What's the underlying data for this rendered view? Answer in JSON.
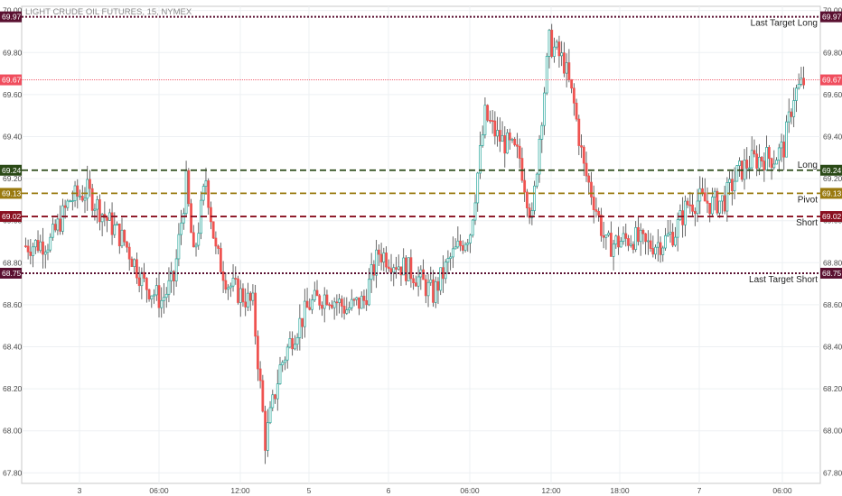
{
  "chart_data": {
    "type": "candlestick",
    "title": "LIGHT CRUDE OIL FUTURES, 15, NYMEX",
    "ylim": [
      67.75,
      70.02
    ],
    "y_ticks": [
      "67.80",
      "68.00",
      "68.20",
      "68.40",
      "68.60",
      "68.80",
      "69.00",
      "69.20",
      "69.40",
      "69.60",
      "69.80",
      "70.00"
    ],
    "x_ticks": [
      "3",
      "06:00",
      "12:00",
      "5",
      "6",
      "06:00",
      "12:00",
      "18:00",
      "7",
      "06:00"
    ],
    "grid": true,
    "price_path": [
      [
        0,
        68.88
      ],
      [
        10,
        68.9
      ],
      [
        18,
        69.1
      ],
      [
        25,
        69.14
      ],
      [
        32,
        69.02
      ],
      [
        40,
        68.9
      ],
      [
        48,
        68.7
      ],
      [
        55,
        68.62
      ],
      [
        60,
        68.72
      ],
      [
        65,
        69.18
      ],
      [
        68,
        68.82
      ],
      [
        73,
        69.2
      ],
      [
        77,
        68.85
      ],
      [
        82,
        68.7
      ],
      [
        87,
        68.65
      ],
      [
        92,
        68.6
      ],
      [
        97,
        67.95
      ],
      [
        103,
        68.3
      ],
      [
        108,
        68.45
      ],
      [
        115,
        68.6
      ],
      [
        122,
        68.65
      ],
      [
        130,
        68.58
      ],
      [
        137,
        68.62
      ],
      [
        143,
        68.85
      ],
      [
        150,
        68.8
      ],
      [
        157,
        68.75
      ],
      [
        165,
        68.65
      ],
      [
        172,
        68.82
      ],
      [
        180,
        68.95
      ],
      [
        186,
        69.5
      ],
      [
        191,
        69.4
      ],
      [
        196,
        69.35
      ],
      [
        200,
        69.3
      ],
      [
        205,
        69.0
      ],
      [
        208,
        69.4
      ],
      [
        212,
        69.85
      ],
      [
        218,
        69.75
      ],
      [
        222,
        69.55
      ],
      [
        226,
        69.25
      ],
      [
        230,
        69.1
      ],
      [
        235,
        68.88
      ],
      [
        240,
        68.9
      ],
      [
        246,
        68.92
      ],
      [
        251,
        68.88
      ],
      [
        258,
        68.9
      ],
      [
        263,
        68.95
      ],
      [
        268,
        69.08
      ],
      [
        273,
        69.1
      ],
      [
        278,
        69.08
      ],
      [
        283,
        69.1
      ],
      [
        288,
        69.22
      ],
      [
        293,
        69.28
      ],
      [
        298,
        69.3
      ],
      [
        303,
        69.3
      ],
      [
        307,
        69.35
      ],
      [
        311,
        69.6
      ],
      [
        315,
        69.66
      ]
    ],
    "levels": [
      {
        "name": "Last Target Long",
        "value": 69.97,
        "label": "69.97",
        "color": "#5a1030",
        "style": "dotted"
      },
      {
        "name": "Long",
        "value": 69.24,
        "label": "69.24",
        "color": "#2b4a17",
        "style": "dashed"
      },
      {
        "name": "Pivot",
        "value": 69.13,
        "label": "69.13",
        "color": "#9a7a10",
        "style": "dashed"
      },
      {
        "name": "Short",
        "value": 69.02,
        "label": "69.02",
        "color": "#8a1020",
        "style": "dashed"
      },
      {
        "name": "Last Target Short",
        "value": 68.75,
        "label": "68.75",
        "color": "#5a1030",
        "style": "dotted"
      }
    ],
    "last_price": {
      "value": 69.67,
      "label": "69.67",
      "color": "#f04e5e"
    },
    "up_color": "#26a69a",
    "down_color": "#ef5350"
  }
}
